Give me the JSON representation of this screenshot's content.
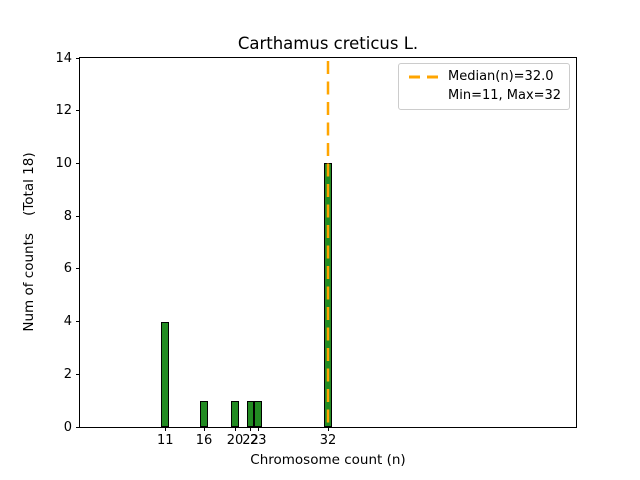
{
  "window": {
    "background": "#ffffff"
  },
  "colors": {
    "bar_fill": "#228B22",
    "bar_edge": "#000000",
    "median_line": "#FFA500",
    "axis": "#000000",
    "legend_border": "#cccccc",
    "text": "#000000"
  },
  "chart_data": {
    "type": "bar",
    "title": "Carthamus creticus L.",
    "xlabel": "Chromosome count (n)",
    "ylabel": "Num of counts    (Total 18)",
    "categories": [
      11,
      16,
      20,
      22,
      23,
      32
    ],
    "values": [
      4,
      1,
      1,
      1,
      1,
      10
    ],
    "bar_width_units": 1,
    "xlim": [
      0,
      64
    ],
    "ylim": [
      0,
      14
    ],
    "xticks": [
      11,
      16,
      20,
      22,
      23,
      32
    ],
    "yticks": [
      0,
      2,
      4,
      6,
      8,
      10,
      12,
      14
    ],
    "grid": false,
    "median_line_x": 32,
    "median_value": 32.0,
    "min_value": 11,
    "max_value": 32,
    "total_counts": 18,
    "legend_position": "upper right",
    "legend_entries": [
      "Median(n)=32.0",
      "Min=11, Max=32"
    ]
  }
}
